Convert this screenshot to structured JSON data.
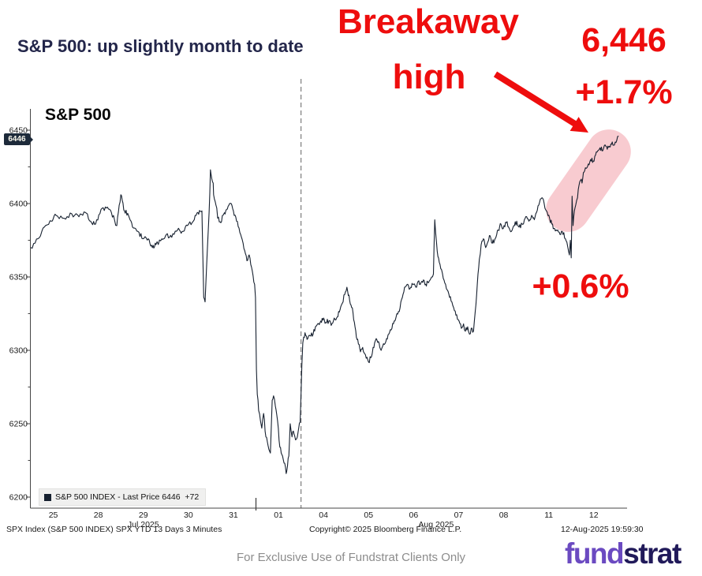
{
  "page": {
    "title": "S&P 500: up slightly month to date",
    "footer": "For Exclusive Use of Fundstrat Clients Only",
    "logo": {
      "part1": "fund",
      "part2": "strat"
    }
  },
  "annotations": {
    "breakaway_line1": "Breakaway",
    "breakaway_line2": "high",
    "price_callout": "6,446",
    "pct_change_top": "+1.7%",
    "pct_change_mid": "+0.6%"
  },
  "colors": {
    "accent_red": "#ee0d0d",
    "highlight_pink": "#f8cbd0",
    "line_navy": "#16202f",
    "title_navy": "#23264a",
    "logo_purple": "#6b4ac1",
    "logo_dark": "#211a5a"
  },
  "chart_data": {
    "type": "line",
    "title": "S&P 500",
    "legend": "S&P 500 INDEX - Last Price 6446  +72",
    "source_line": "SPX Index (S&P 500 INDEX) SPX YTD 13 Days 3 Minutes",
    "copyright": "Copyright© 2025 Bloomberg Finance L.P.",
    "timestamp": "12-Aug-2025 19:59:30",
    "last_price": 6446,
    "last_price_label": "6446",
    "last_change": "+72",
    "ylim": [
      6190,
      6455
    ],
    "yticks": [
      6200,
      6250,
      6300,
      6350,
      6400,
      6450
    ],
    "yticks_minor": [
      6225,
      6275,
      6325,
      6375,
      6425
    ],
    "x_day_labels": [
      "25",
      "28",
      "29",
      "30",
      "31",
      "01",
      "04",
      "05",
      "06",
      "07",
      "08",
      "11",
      "12"
    ],
    "x_month_labels": [
      {
        "label": "Jul 2025",
        "t": 2.5
      },
      {
        "label": "Aug 2025",
        "t": 9.0
      }
    ],
    "month_boundary_t": 5,
    "weekend_dash_t": 6,
    "series": [
      [
        0,
        6370
      ],
      [
        0.16,
        6376
      ],
      [
        0.3,
        6384
      ],
      [
        0.46,
        6388
      ],
      [
        0.56,
        6392
      ],
      [
        0.74,
        6390
      ],
      [
        0.91,
        6393
      ],
      [
        1.07,
        6391
      ],
      [
        1.21,
        6394
      ],
      [
        1.33,
        6388
      ],
      [
        1.44,
        6386
      ],
      [
        1.56,
        6396
      ],
      [
        1.68,
        6397
      ],
      [
        1.79,
        6394
      ],
      [
        1.91,
        6385
      ],
      [
        2,
        6406
      ],
      [
        2.08,
        6395
      ],
      [
        2.17,
        6392
      ],
      [
        2.26,
        6384
      ],
      [
        2.38,
        6381
      ],
      [
        2.49,
        6376
      ],
      [
        2.61,
        6376
      ],
      [
        2.7,
        6370
      ],
      [
        2.78,
        6372
      ],
      [
        2.91,
        6376
      ],
      [
        3.01,
        6379
      ],
      [
        3.13,
        6377
      ],
      [
        3.26,
        6382
      ],
      [
        3.36,
        6381
      ],
      [
        3.48,
        6385
      ],
      [
        3.61,
        6388
      ],
      [
        3.71,
        6394
      ],
      [
        3.8,
        6395
      ],
      [
        3.84,
        6336
      ],
      [
        3.87,
        6333
      ],
      [
        3.89,
        6347
      ],
      [
        3.96,
        6394
      ],
      [
        3.99,
        6423
      ],
      [
        4.05,
        6414
      ],
      [
        4.06,
        6406
      ],
      [
        4.13,
        6397
      ],
      [
        4.15,
        6390
      ],
      [
        4.22,
        6387
      ],
      [
        4.27,
        6392
      ],
      [
        4.33,
        6395
      ],
      [
        4.4,
        6399
      ],
      [
        4.45,
        6400
      ],
      [
        4.5,
        6395
      ],
      [
        4.57,
        6388
      ],
      [
        4.66,
        6379
      ],
      [
        4.75,
        6368
      ],
      [
        4.8,
        6361
      ],
      [
        4.85,
        6365
      ],
      [
        4.92,
        6354
      ],
      [
        4.97,
        6345
      ],
      [
        4.99,
        6336
      ],
      [
        5.01,
        6287
      ],
      [
        5.03,
        6270
      ],
      [
        5.06,
        6259
      ],
      [
        5.1,
        6252
      ],
      [
        5.13,
        6247
      ],
      [
        5.17,
        6257
      ],
      [
        5.22,
        6241
      ],
      [
        5.27,
        6235
      ],
      [
        5.32,
        6230
      ],
      [
        5.36,
        6266
      ],
      [
        5.39,
        6269
      ],
      [
        5.43,
        6262
      ],
      [
        5.48,
        6252
      ],
      [
        5.53,
        6234
      ],
      [
        5.59,
        6228
      ],
      [
        5.64,
        6223
      ],
      [
        5.67,
        6216
      ],
      [
        5.73,
        6228
      ],
      [
        5.76,
        6250
      ],
      [
        5.8,
        6241
      ],
      [
        5.83,
        6245
      ],
      [
        5.88,
        6239
      ],
      [
        5.92,
        6241
      ],
      [
        5.95,
        6247
      ],
      [
        5.98,
        6251
      ],
      [
        6.02,
        6290
      ],
      [
        6.04,
        6305
      ],
      [
        6.06,
        6309
      ],
      [
        6.09,
        6312
      ],
      [
        6.15,
        6308
      ],
      [
        6.2,
        6310
      ],
      [
        6.27,
        6311
      ],
      [
        6.32,
        6316
      ],
      [
        6.37,
        6318
      ],
      [
        6.44,
        6320
      ],
      [
        6.5,
        6322
      ],
      [
        6.55,
        6319
      ],
      [
        6.62,
        6320
      ],
      [
        6.67,
        6317
      ],
      [
        6.72,
        6320
      ],
      [
        6.79,
        6322
      ],
      [
        6.85,
        6326
      ],
      [
        6.9,
        6331
      ],
      [
        6.97,
        6338
      ],
      [
        7.02,
        6343
      ],
      [
        7.08,
        6334
      ],
      [
        7.14,
        6329
      ],
      [
        7.2,
        6316
      ],
      [
        7.23,
        6309
      ],
      [
        7.29,
        6304
      ],
      [
        7.32,
        6299
      ],
      [
        7.37,
        6302
      ],
      [
        7.43,
        6297
      ],
      [
        7.5,
        6292
      ],
      [
        7.55,
        6295
      ],
      [
        7.6,
        6302
      ],
      [
        7.67,
        6308
      ],
      [
        7.72,
        6306
      ],
      [
        7.78,
        6300
      ],
      [
        7.85,
        6304
      ],
      [
        7.9,
        6308
      ],
      [
        7.95,
        6311
      ],
      [
        8.02,
        6315
      ],
      [
        8.07,
        6320
      ],
      [
        8.13,
        6325
      ],
      [
        8.2,
        6329
      ],
      [
        8.25,
        6336
      ],
      [
        8.3,
        6343
      ],
      [
        8.37,
        6345
      ],
      [
        8.42,
        6342
      ],
      [
        8.48,
        6345
      ],
      [
        8.55,
        6343
      ],
      [
        8.6,
        6347
      ],
      [
        8.65,
        6345
      ],
      [
        8.72,
        6348
      ],
      [
        8.77,
        6345
      ],
      [
        8.83,
        6346
      ],
      [
        8.9,
        6350
      ],
      [
        8.94,
        6352
      ],
      [
        8.97,
        6389
      ],
      [
        9.01,
        6373
      ],
      [
        9.04,
        6364
      ],
      [
        9.07,
        6360
      ],
      [
        9.12,
        6355
      ],
      [
        9.16,
        6349
      ],
      [
        9.21,
        6345
      ],
      [
        9.25,
        6341
      ],
      [
        9.3,
        6336
      ],
      [
        9.35,
        6333
      ],
      [
        9.39,
        6329
      ],
      [
        9.44,
        6324
      ],
      [
        9.51,
        6320
      ],
      [
        9.56,
        6315
      ],
      [
        9.61,
        6318
      ],
      [
        9.65,
        6313
      ],
      [
        9.7,
        6316
      ],
      [
        9.74,
        6311
      ],
      [
        9.78,
        6315
      ],
      [
        9.83,
        6313
      ],
      [
        9.87,
        6327
      ],
      [
        9.9,
        6338
      ],
      [
        9.93,
        6352
      ],
      [
        9.96,
        6362
      ],
      [
        10,
        6372
      ],
      [
        10.05,
        6376
      ],
      [
        10.1,
        6370
      ],
      [
        10.15,
        6374
      ],
      [
        10.2,
        6378
      ],
      [
        10.25,
        6373
      ],
      [
        10.31,
        6376
      ],
      [
        10.38,
        6382
      ],
      [
        10.44,
        6386
      ],
      [
        10.49,
        6383
      ],
      [
        10.56,
        6387
      ],
      [
        10.61,
        6384
      ],
      [
        10.67,
        6381
      ],
      [
        10.74,
        6385
      ],
      [
        10.79,
        6388
      ],
      [
        10.84,
        6384
      ],
      [
        10.91,
        6386
      ],
      [
        10.96,
        6389
      ],
      [
        11.01,
        6391
      ],
      [
        11.06,
        6388
      ],
      [
        11.12,
        6392
      ],
      [
        11.18,
        6389
      ],
      [
        11.23,
        6394
      ],
      [
        11.28,
        6399
      ],
      [
        11.35,
        6404
      ],
      [
        11.4,
        6400
      ],
      [
        11.45,
        6395
      ],
      [
        11.52,
        6390
      ],
      [
        11.57,
        6386
      ],
      [
        11.63,
        6383
      ],
      [
        11.7,
        6382
      ],
      [
        11.75,
        6379
      ],
      [
        11.8,
        6381
      ],
      [
        11.87,
        6376
      ],
      [
        11.92,
        6371
      ],
      [
        11.96,
        6365
      ],
      [
        11.98,
        6375
      ],
      [
        12,
        6363
      ],
      [
        12.02,
        6405
      ],
      [
        12.04,
        6385
      ],
      [
        12.07,
        6395
      ],
      [
        12.1,
        6399
      ],
      [
        12.14,
        6404
      ],
      [
        12.17,
        6412
      ],
      [
        12.21,
        6416
      ],
      [
        12.24,
        6414
      ],
      [
        12.27,
        6421
      ],
      [
        12.33,
        6424
      ],
      [
        12.38,
        6427
      ],
      [
        12.43,
        6430
      ],
      [
        12.49,
        6429
      ],
      [
        12.54,
        6433
      ],
      [
        12.59,
        6436
      ],
      [
        12.64,
        6438
      ],
      [
        12.7,
        6436
      ],
      [
        12.75,
        6440
      ],
      [
        12.8,
        6437
      ],
      [
        12.85,
        6439
      ],
      [
        12.91,
        6442
      ],
      [
        12.96,
        6440
      ],
      [
        13.01,
        6443
      ],
      [
        13.05,
        6446
      ]
    ]
  }
}
